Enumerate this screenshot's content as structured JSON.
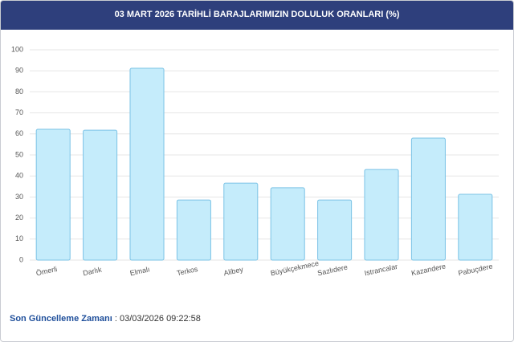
{
  "chart_data": {
    "type": "bar",
    "title": "03 MART 2026 TARİHLİ BARAJLARIMIZIN DOLULUK ORANLARI (%)",
    "categories": [
      "Ömerli",
      "Darlık",
      "Elmalı",
      "Terkos",
      "Alibey",
      "Büyükçekmece",
      "Sazlıdere",
      "Istrancalar",
      "Kazandere",
      "Pabuçdere"
    ],
    "values": [
      62.2,
      61.8,
      91.2,
      28.6,
      36.6,
      34.4,
      28.6,
      43.1,
      58,
      31.3
    ],
    "color": "#c5ecfb",
    "edge_color": "#7cc3e6",
    "ylim": [
      0,
      100
    ],
    "yticks": [
      0,
      10,
      20,
      30,
      40,
      50,
      60,
      70,
      80,
      90,
      100
    ],
    "grid": true
  },
  "footer": {
    "label": "Son Güncelleme Zamanı",
    "separator": ":",
    "value": "03/03/2026 09:22:58"
  }
}
